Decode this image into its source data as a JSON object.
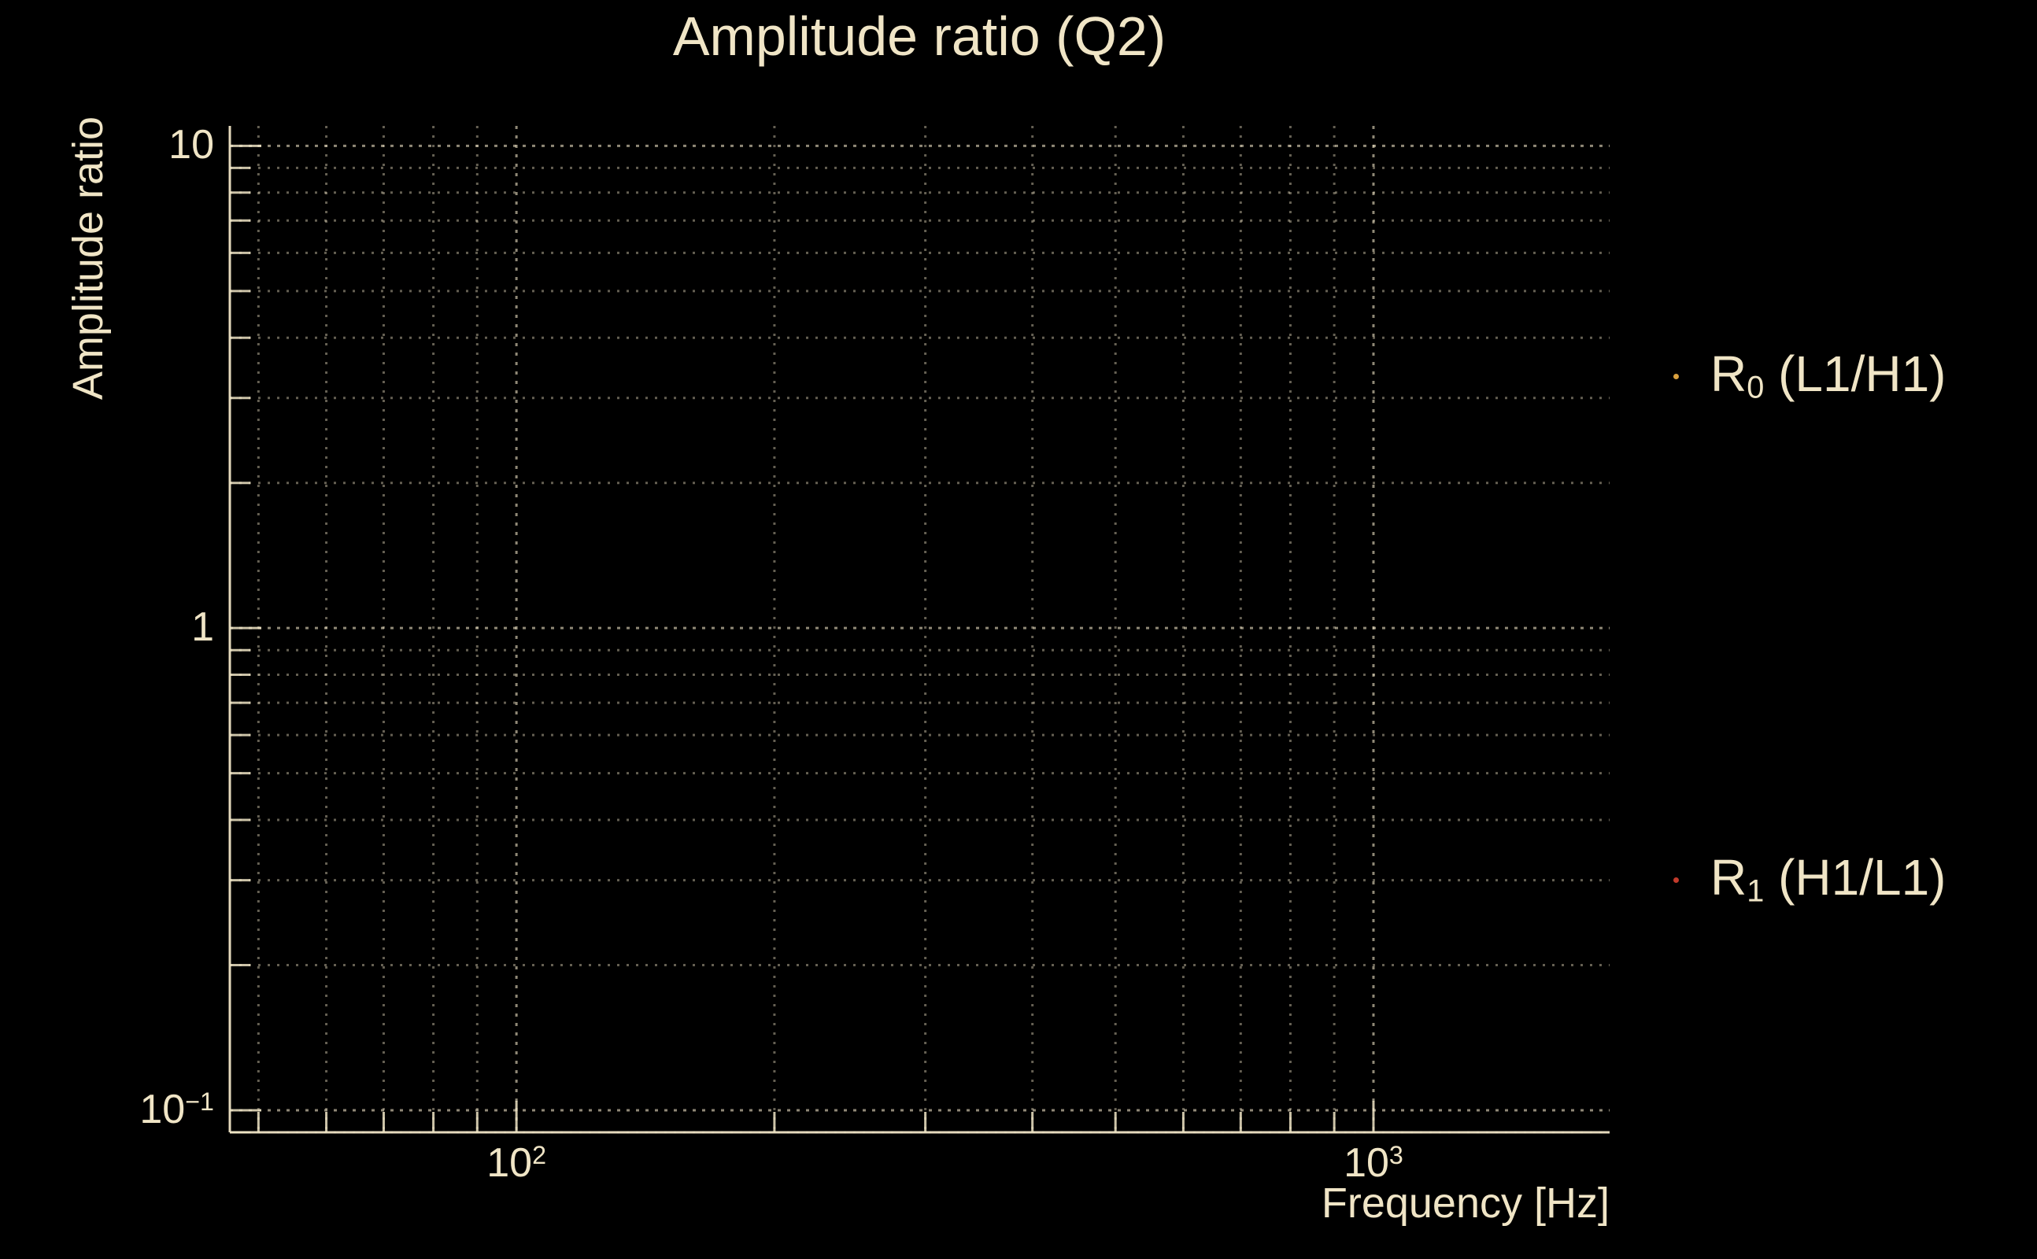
{
  "colors": {
    "background": "#000000",
    "foreground": "#F0E5C6",
    "r0_marker": "#D9A03E",
    "r1_marker": "#C23A2B"
  },
  "chart_data": {
    "type": "scatter",
    "title": "Amplitude ratio (Q2)",
    "xlabel": "Frequency [Hz]",
    "ylabel": "Amplitude ratio",
    "x_scale": "log",
    "y_scale": "log",
    "xlim": [
      46.3,
      1886
    ],
    "ylim": [
      0.09,
      11
    ],
    "x_ticks": [
      {
        "value": 100,
        "base": "10",
        "exp": "2"
      },
      {
        "value": 1000,
        "base": "10",
        "exp": "3"
      }
    ],
    "y_ticks": [
      {
        "value": 10,
        "base": "10",
        "exp": ""
      },
      {
        "value": 1,
        "base": "1",
        "exp": ""
      },
      {
        "value": 0.1,
        "base": "10",
        "exp": "−1"
      }
    ],
    "grid": {
      "which": "both",
      "linestyle": "dotted",
      "grid_on": true
    },
    "legend": {
      "position": "outside-right"
    },
    "series": [
      {
        "name": "R0 (L1/H1)",
        "label_prefix": "R",
        "label_sub": "0",
        "label_suffix": " (L1/H1)",
        "marker_color": "#D9A03E",
        "x": [],
        "y": []
      },
      {
        "name": "R1 (H1/L1)",
        "label_prefix": "R",
        "label_sub": "1",
        "label_suffix": " (H1/L1)",
        "marker_color": "#C23A2B",
        "x": [],
        "y": []
      }
    ]
  }
}
